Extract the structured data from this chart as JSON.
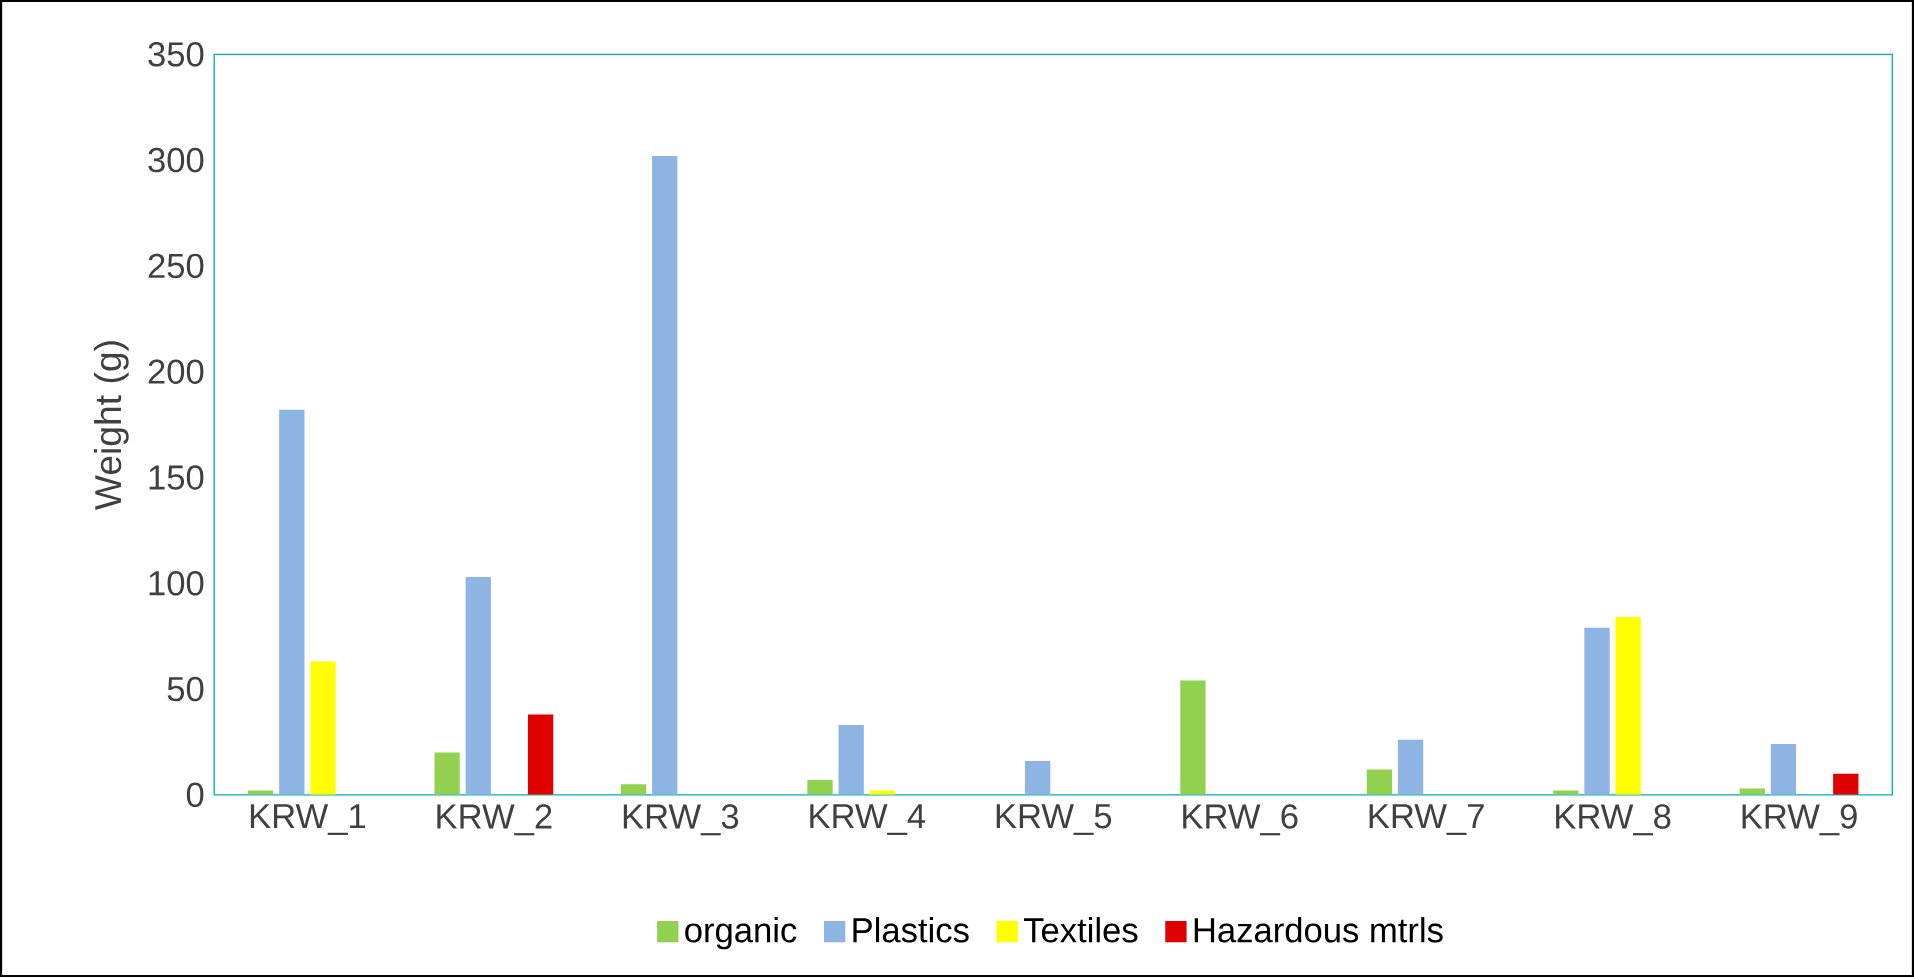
{
  "chart_data": {
    "type": "bar",
    "ylabel": "Weight (g)",
    "categories": [
      "KRW_1",
      "KRW_2",
      "KRW_3",
      "KRW_4",
      "KRW_5",
      "KRW_6",
      "KRW_7",
      "KRW_8",
      "KRW_9"
    ],
    "series": [
      {
        "name": "organic",
        "color": "#92d050",
        "values": [
          2,
          20,
          5,
          7,
          0,
          54,
          12,
          2,
          3
        ]
      },
      {
        "name": "Plastics",
        "color": "#8eb4e3",
        "values": [
          182,
          103,
          302,
          33,
          16,
          0,
          26,
          79,
          24
        ]
      },
      {
        "name": "Textiles",
        "color": "#ffff00",
        "values": [
          63,
          0,
          0,
          2,
          0,
          0,
          0,
          84,
          0
        ]
      },
      {
        "name": "Hazardous mtrls",
        "color": "#e00000",
        "values": [
          0,
          38,
          0,
          0,
          0,
          0,
          0,
          0,
          10
        ]
      }
    ],
    "ylim": [
      0,
      350
    ],
    "yticks": [
      0,
      50,
      100,
      150,
      200,
      250,
      300,
      350
    ],
    "grid": false,
    "legend": "bottom"
  }
}
